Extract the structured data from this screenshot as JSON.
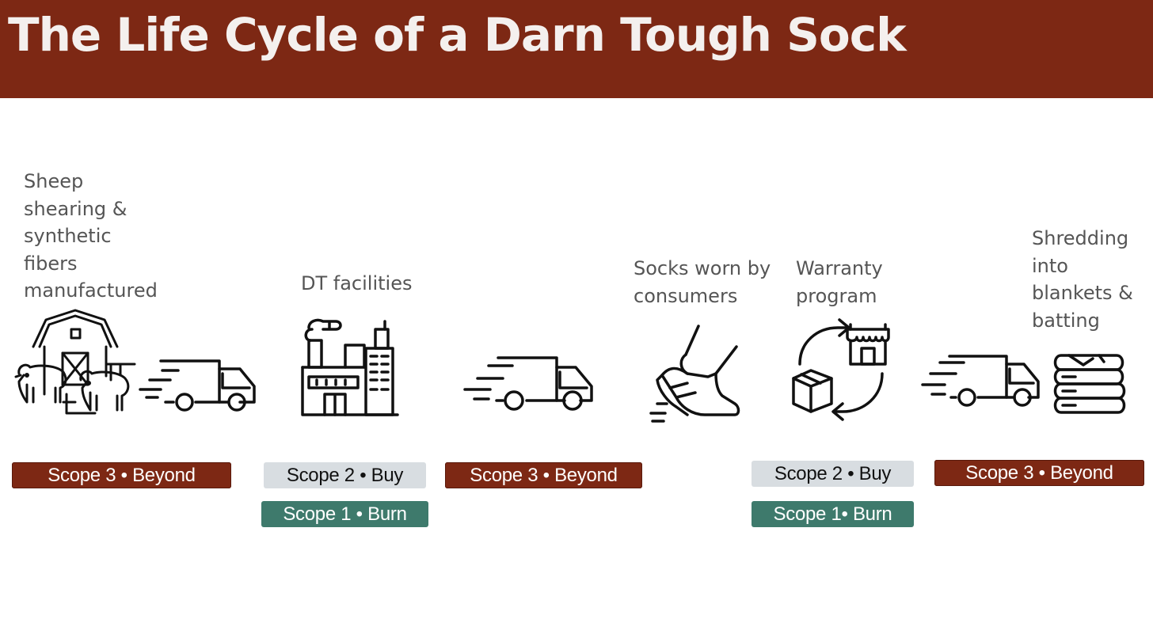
{
  "header": {
    "title": "The Life Cycle of a Darn Tough Sock",
    "background_color": "#7d2814"
  },
  "stages": [
    {
      "label": "Sheep\nshearing &\nsynthetic\nfibers\nmanufactured",
      "icons": [
        "barn-with-sheep-icon",
        "delivery-truck-icon"
      ]
    },
    {
      "label": "DT facilities",
      "icons": [
        "factory-icon"
      ]
    },
    {
      "label": "",
      "icons": [
        "delivery-truck-icon"
      ]
    },
    {
      "label": "Socks worn by\nconsumers",
      "icons": [
        "walking-shoe-icon"
      ]
    },
    {
      "label": "Warranty\nprogram",
      "icons": [
        "return-cycle-icon"
      ]
    },
    {
      "label": "Shredding\ninto\nblankets &\nbatting",
      "icons": [
        "delivery-truck-icon",
        "folded-blankets-icon"
      ]
    }
  ],
  "badges": {
    "sourcing_scope3": "Scope 3 • Beyond",
    "facilities_scope2": "Scope 2 • Buy",
    "facilities_scope1": "Scope 1 • Burn",
    "distribution_scope3": "Scope 3 • Beyond",
    "warranty_scope2": "Scope 2 • Buy",
    "warranty_scope1": "Scope 1• Burn",
    "end_of_life_scope3": "Scope 3 • Beyond"
  },
  "colors": {
    "scope3": "#7d2814",
    "scope2": "#d8dde1",
    "scope1": "#3e7a6c"
  }
}
